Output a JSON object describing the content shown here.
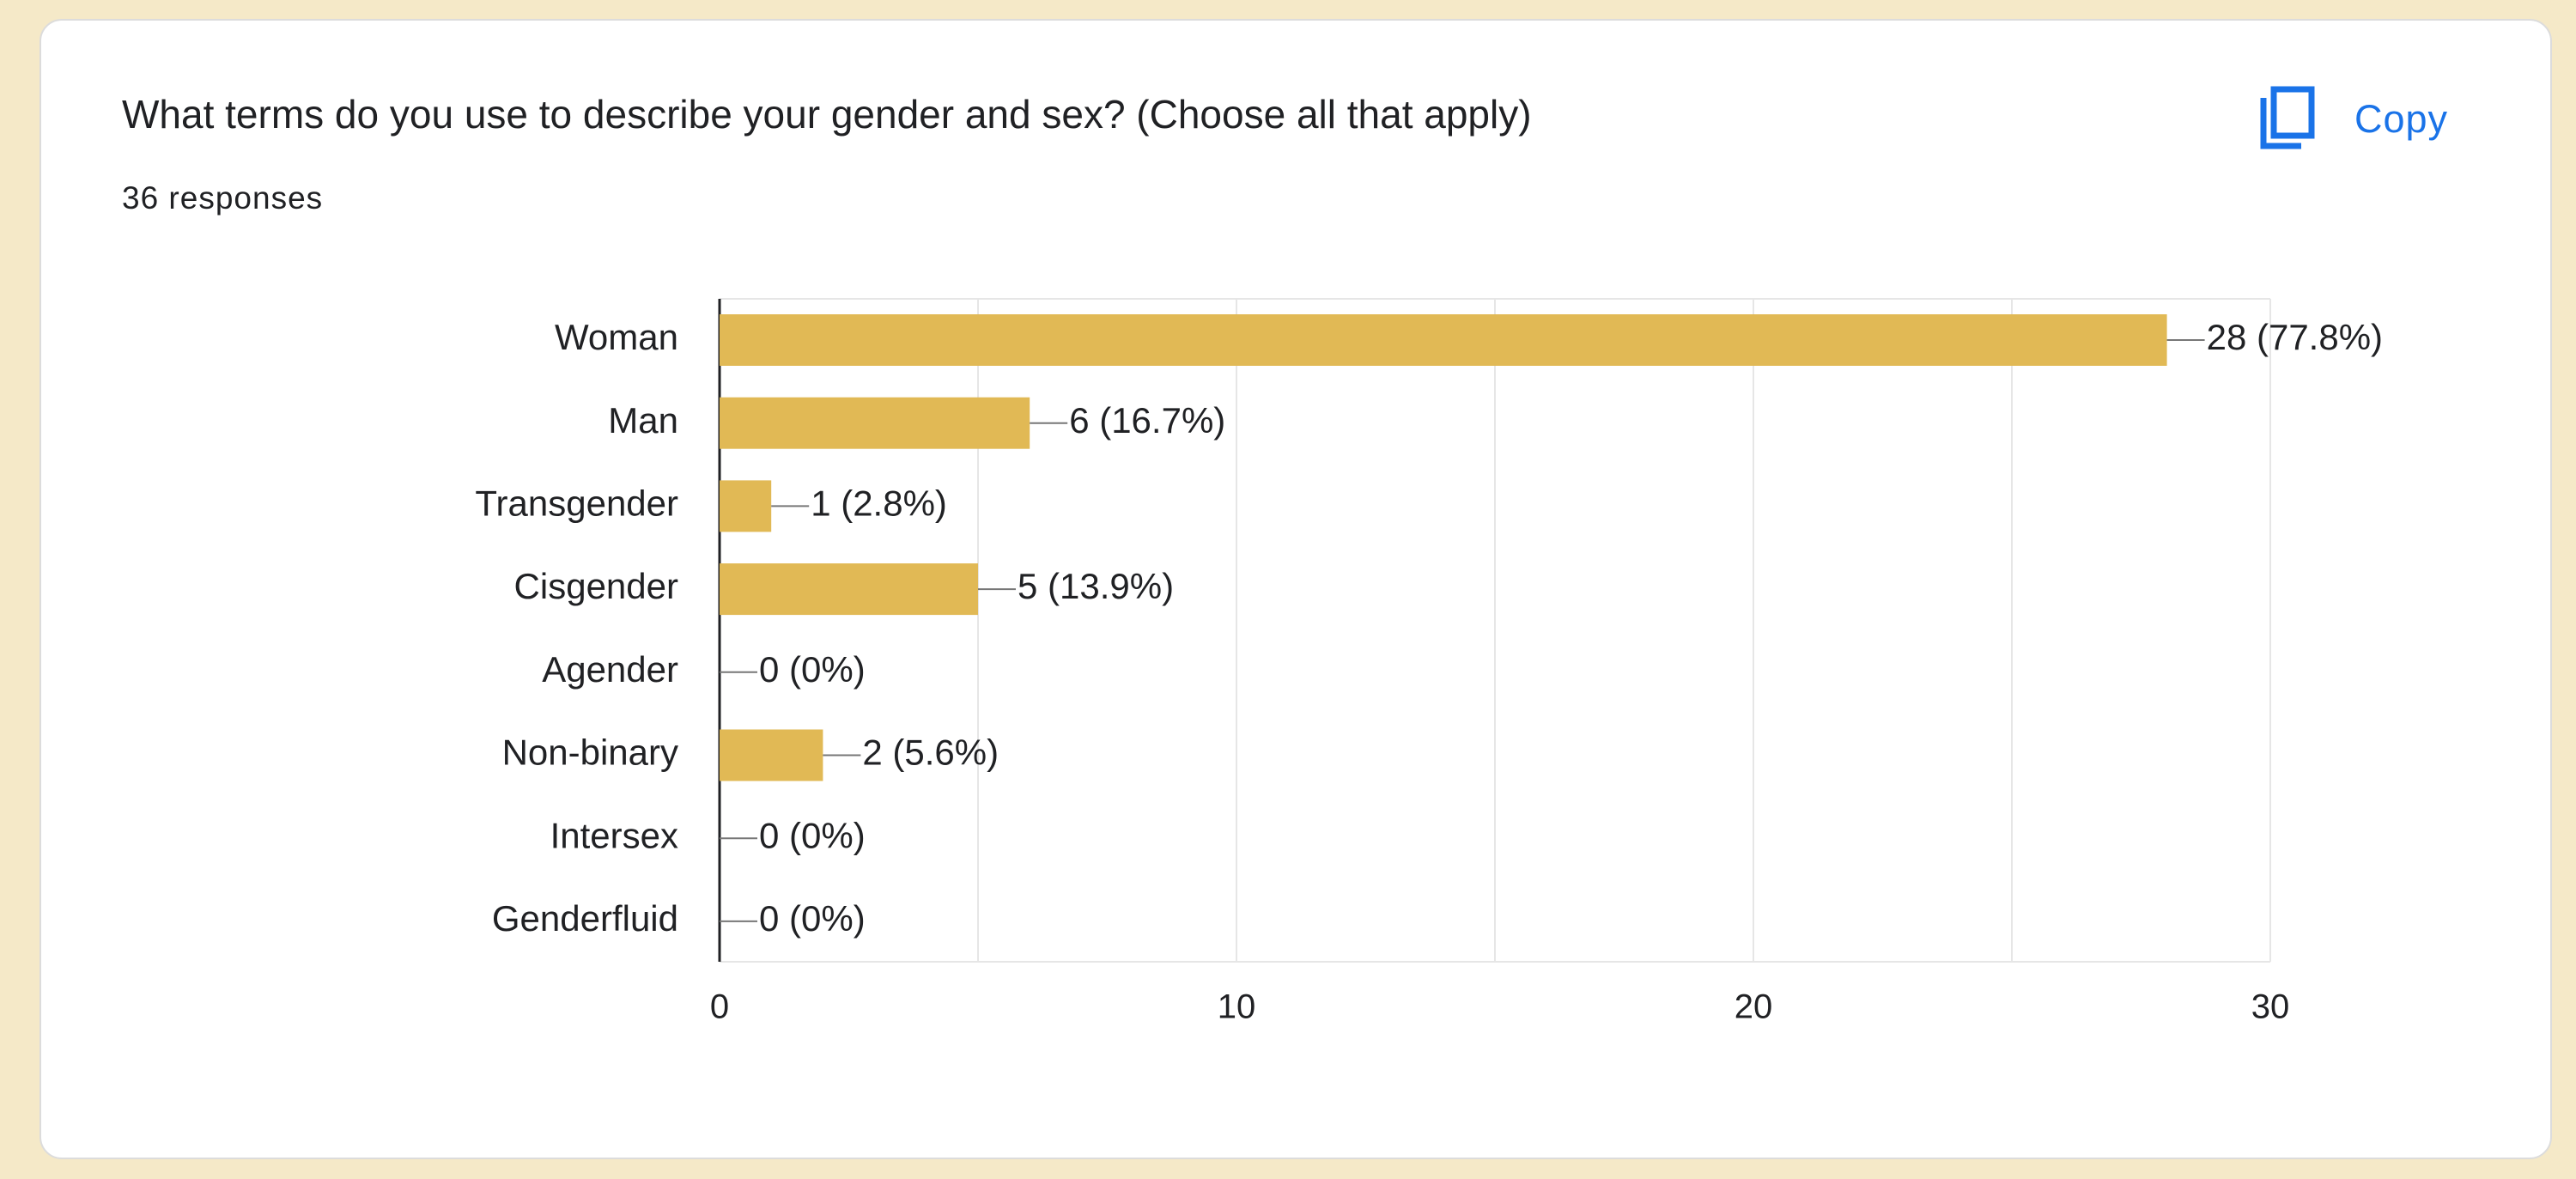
{
  "question": {
    "title": "What terms do you use to describe your gender and sex? (Choose all that apply)",
    "responses": "36 responses"
  },
  "copy_button": {
    "label": "Copy",
    "icon": "copy-icon",
    "color": "#1a73e8"
  },
  "colors": {
    "bar": "#e1b955",
    "background": "#f5e9c8",
    "card": "#ffffff"
  },
  "chart_data": {
    "type": "bar",
    "orientation": "horizontal",
    "categories": [
      "Woman",
      "Man",
      "Transgender",
      "Cisgender",
      "Agender",
      "Non-binary",
      "Intersex",
      "Genderfluid"
    ],
    "values": [
      28,
      6,
      1,
      5,
      0,
      2,
      0,
      0
    ],
    "data_labels": [
      "28 (77.8%)",
      "6 (16.7%)",
      "1 (2.8%)",
      "5 (13.9%)",
      "0 (0%)",
      "2 (5.6%)",
      "0 (0%)",
      "0 (0%)"
    ],
    "xlim": [
      0,
      30
    ],
    "xticks": [
      "0",
      "10",
      "20",
      "30"
    ],
    "grid": true
  }
}
